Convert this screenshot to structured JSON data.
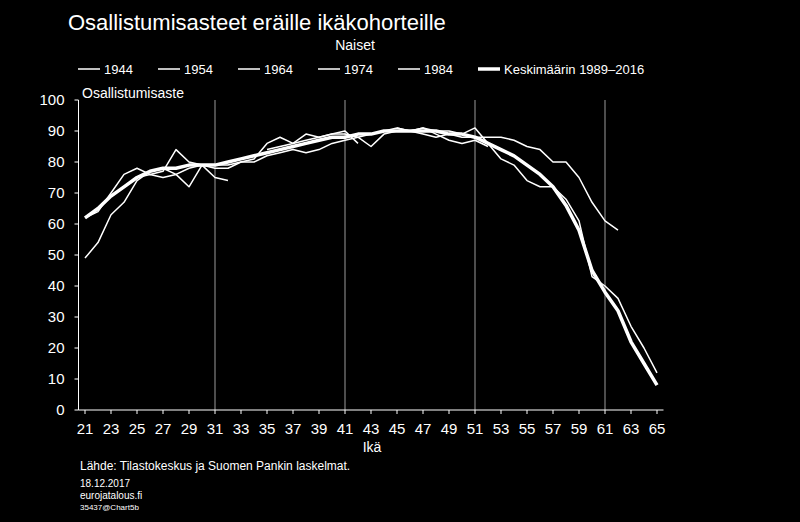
{
  "chart_data": {
    "type": "line",
    "title": "Osallistumisasteet eräille ikäkohorteille",
    "subtitle": "Naiset",
    "y_label": "Osallistumisaste",
    "x_label": "Ikä",
    "source": "Lähde: Tilastokeskus ja Suomen Pankin laskelmat.",
    "annotations": [
      "18.12.2017",
      "eurojatalous.fi",
      "35437@Chart5b"
    ],
    "legend": "top",
    "grid": true,
    "xlim": [
      20.5,
      65.5
    ],
    "ylim": [
      0,
      100
    ],
    "xticks": [
      21,
      23,
      25,
      27,
      29,
      31,
      33,
      35,
      37,
      39,
      41,
      43,
      45,
      47,
      49,
      51,
      53,
      55,
      57,
      59,
      61,
      63,
      65
    ],
    "yticks": [
      0,
      10,
      20,
      30,
      40,
      50,
      60,
      70,
      80,
      90,
      100
    ],
    "x": [
      21,
      22,
      23,
      24,
      25,
      26,
      27,
      28,
      29,
      30,
      31,
      32,
      33,
      34,
      35,
      36,
      37,
      38,
      39,
      40,
      41,
      42,
      43,
      44,
      45,
      46,
      47,
      48,
      49,
      50,
      51,
      52,
      53,
      54,
      55,
      56,
      57,
      58,
      59,
      60,
      61,
      62,
      63,
      64,
      65
    ],
    "series": [
      {
        "name": "1944",
        "color": "#ffffff",
        "line_style": "solid",
        "values": [
          null,
          null,
          null,
          null,
          null,
          null,
          null,
          null,
          null,
          null,
          null,
          null,
          null,
          null,
          null,
          null,
          null,
          null,
          null,
          null,
          null,
          null,
          null,
          null,
          91,
          90,
          91,
          90,
          90,
          89,
          91,
          86,
          81,
          79,
          74,
          72,
          72,
          68,
          61,
          43,
          40,
          36,
          27,
          20,
          12
        ]
      },
      {
        "name": "1954",
        "color": "#ffffff",
        "line_style": "solid",
        "values": [
          null,
          null,
          null,
          null,
          null,
          null,
          null,
          null,
          null,
          null,
          null,
          null,
          null,
          null,
          84,
          85,
          86,
          87,
          88,
          89,
          89,
          88,
          85,
          89,
          90,
          90,
          89,
          88,
          89,
          88,
          88,
          88,
          88,
          87,
          85,
          84,
          80,
          80,
          75,
          67,
          61,
          58,
          null,
          null,
          null
        ]
      },
      {
        "name": "1964",
        "color": "#ffffff",
        "line_style": "solid",
        "values": [
          null,
          null,
          null,
          null,
          75,
          76,
          75,
          76,
          78,
          79,
          78,
          78,
          80,
          80,
          82,
          83,
          84,
          83,
          84,
          86,
          87,
          88,
          89,
          90,
          91,
          90,
          91,
          89,
          87,
          86,
          87,
          85,
          null,
          null,
          null,
          null,
          null,
          null,
          null,
          null,
          null,
          null,
          null,
          null,
          null
        ]
      },
      {
        "name": "1974",
        "color": "#ffffff",
        "line_style": "solid",
        "values": [
          62,
          64,
          70,
          76,
          78,
          76,
          77,
          84,
          80,
          79,
          79,
          79,
          80,
          81,
          86,
          88,
          86,
          89,
          88,
          89,
          90,
          86,
          null,
          null,
          null,
          null,
          null,
          null,
          null,
          null,
          null,
          null,
          null,
          null,
          null,
          null,
          null,
          null,
          null,
          null,
          null,
          null,
          null,
          null,
          null
        ]
      },
      {
        "name": "1984",
        "color": "#ffffff",
        "line_style": "solid",
        "values": [
          49,
          54,
          63,
          67,
          74,
          77,
          78,
          76,
          72,
          79,
          75,
          74,
          null,
          null,
          null,
          null,
          null,
          null,
          null,
          null,
          null,
          null,
          null,
          null,
          null,
          null,
          null,
          null,
          null,
          null,
          null,
          null,
          null,
          null,
          null,
          null,
          null,
          null,
          null,
          null,
          null,
          null,
          null,
          null,
          null
        ]
      },
      {
        "name": "Keskimäärin 1989–2016",
        "color": "#ffffff",
        "line_style": "thick",
        "values": [
          62,
          65,
          69,
          72,
          75,
          77,
          78,
          78,
          79,
          79,
          79,
          80,
          81,
          82,
          83,
          84,
          85,
          86,
          87,
          88,
          88,
          89,
          89,
          90,
          90,
          90,
          90,
          90,
          89,
          89,
          88,
          86,
          84,
          82,
          79,
          76,
          72,
          66,
          58,
          45,
          38,
          32,
          22,
          15,
          8
        ]
      }
    ]
  }
}
